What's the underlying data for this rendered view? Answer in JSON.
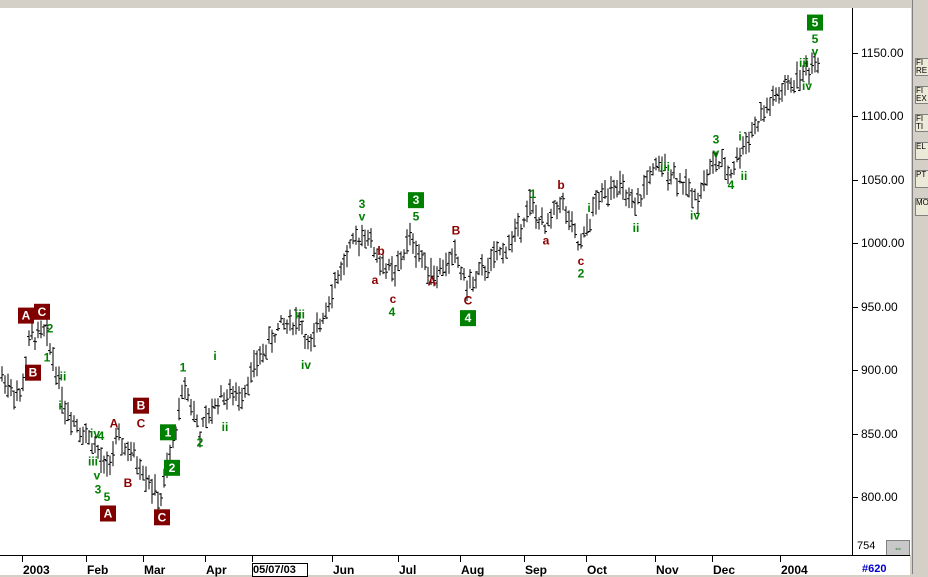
{
  "chart_data": {
    "type": "ohlc",
    "symbol_hint": "",
    "y_ticks": [
      800,
      850,
      900,
      950,
      1000,
      1050,
      1100,
      1150
    ],
    "ylim": [
      754,
      1180
    ],
    "y_min_label": "754",
    "x_labels": [
      "2003",
      "Feb",
      "Mar",
      "Apr",
      "05/07/03",
      "Jun",
      "Jul",
      "Aug",
      "Sep",
      "Oct",
      "Nov",
      "Dec",
      "2004"
    ],
    "price_path": [
      [
        0,
        897
      ],
      [
        20,
        878
      ],
      [
        30,
        925
      ],
      [
        45,
        930
      ],
      [
        55,
        905
      ],
      [
        65,
        870
      ],
      [
        80,
        855
      ],
      [
        95,
        840
      ],
      [
        105,
        820
      ],
      [
        118,
        845
      ],
      [
        130,
        835
      ],
      [
        145,
        820
      ],
      [
        160,
        795
      ],
      [
        172,
        840
      ],
      [
        185,
        890
      ],
      [
        200,
        850
      ],
      [
        220,
        880
      ],
      [
        240,
        880
      ],
      [
        260,
        910
      ],
      [
        280,
        935
      ],
      [
        300,
        940
      ],
      [
        310,
        915
      ],
      [
        330,
        960
      ],
      [
        350,
        995
      ],
      [
        365,
        1010
      ],
      [
        380,
        985
      ],
      [
        395,
        975
      ],
      [
        410,
        1005
      ],
      [
        420,
        990
      ],
      [
        435,
        975
      ],
      [
        455,
        990
      ],
      [
        468,
        965
      ],
      [
        485,
        980
      ],
      [
        510,
        1000
      ],
      [
        530,
        1030
      ],
      [
        545,
        1010
      ],
      [
        560,
        1035
      ],
      [
        580,
        995
      ],
      [
        595,
        1030
      ],
      [
        615,
        1050
      ],
      [
        635,
        1025
      ],
      [
        650,
        1055
      ],
      [
        665,
        1060
      ],
      [
        680,
        1050
      ],
      [
        695,
        1035
      ],
      [
        715,
        1065
      ],
      [
        730,
        1055
      ],
      [
        745,
        1080
      ],
      [
        770,
        1110
      ],
      [
        790,
        1125
      ],
      [
        805,
        1135
      ],
      [
        818,
        1145
      ]
    ],
    "wave_labels": [
      {
        "t": "A",
        "x": 26,
        "y": 943,
        "boxed": true,
        "color": "red"
      },
      {
        "t": "C",
        "x": 42,
        "y": 946,
        "boxed": true,
        "color": "red"
      },
      {
        "t": "2",
        "x": 50,
        "y": 933,
        "color": "green"
      },
      {
        "t": "1",
        "x": 47,
        "y": 910,
        "color": "green"
      },
      {
        "t": "B",
        "x": 33,
        "y": 898,
        "boxed": true,
        "color": "red"
      },
      {
        "t": "ii",
        "x": 63,
        "y": 895,
        "color": "green"
      },
      {
        "t": "i",
        "x": 60,
        "y": 872,
        "color": "green"
      },
      {
        "t": "iv",
        "x": 95,
        "y": 850,
        "color": "green"
      },
      {
        "t": "4",
        "x": 101,
        "y": 848,
        "color": "green"
      },
      {
        "t": "iii",
        "x": 93,
        "y": 828,
        "color": "green"
      },
      {
        "t": "v",
        "x": 97,
        "y": 817,
        "color": "green"
      },
      {
        "t": "3",
        "x": 98,
        "y": 806,
        "color": "green"
      },
      {
        "t": "5",
        "x": 107,
        "y": 800,
        "color": "green"
      },
      {
        "t": "A",
        "x": 108,
        "y": 787,
        "boxed": true,
        "color": "red"
      },
      {
        "t": "A",
        "x": 114,
        "y": 858,
        "color": "red"
      },
      {
        "t": "C",
        "x": 141,
        "y": 858,
        "color": "red"
      },
      {
        "t": "B",
        "x": 141,
        "y": 872,
        "boxed": true,
        "color": "red"
      },
      {
        "t": "B",
        "x": 128,
        "y": 811,
        "color": "red"
      },
      {
        "t": "C",
        "x": 162,
        "y": 784,
        "boxed": true,
        "color": "red"
      },
      {
        "t": "1",
        "x": 168,
        "y": 851,
        "boxed": true,
        "color": "green"
      },
      {
        "t": "2",
        "x": 172,
        "y": 823,
        "boxed": true,
        "color": "green"
      },
      {
        "t": "1",
        "x": 183,
        "y": 902,
        "color": "green"
      },
      {
        "t": "2",
        "x": 200,
        "y": 843,
        "color": "green"
      },
      {
        "t": "i",
        "x": 215,
        "y": 911,
        "color": "green"
      },
      {
        "t": "ii",
        "x": 225,
        "y": 855,
        "color": "green"
      },
      {
        "t": "iii",
        "x": 300,
        "y": 944,
        "color": "green"
      },
      {
        "t": "iv",
        "x": 306,
        "y": 904,
        "color": "green"
      },
      {
        "t": "3",
        "x": 362,
        "y": 1031,
        "color": "green"
      },
      {
        "t": "v",
        "x": 362,
        "y": 1021,
        "color": "green"
      },
      {
        "t": "b",
        "x": 381,
        "y": 994,
        "color": "red"
      },
      {
        "t": "a",
        "x": 375,
        "y": 971,
        "color": "red"
      },
      {
        "t": "c",
        "x": 393,
        "y": 956,
        "color": "red"
      },
      {
        "t": "4",
        "x": 392,
        "y": 946,
        "color": "green"
      },
      {
        "t": "3",
        "x": 416,
        "y": 1034,
        "boxed": true,
        "color": "green"
      },
      {
        "t": "5",
        "x": 416,
        "y": 1021,
        "color": "green"
      },
      {
        "t": "B",
        "x": 456,
        "y": 1010,
        "color": "red"
      },
      {
        "t": "A",
        "x": 432,
        "y": 970,
        "color": "red"
      },
      {
        "t": "C",
        "x": 468,
        "y": 955,
        "color": "red"
      },
      {
        "t": "4",
        "x": 468,
        "y": 941,
        "boxed": true,
        "color": "green"
      },
      {
        "t": "1",
        "x": 533,
        "y": 1039,
        "color": "green"
      },
      {
        "t": "b",
        "x": 561,
        "y": 1046,
        "color": "red"
      },
      {
        "t": "a",
        "x": 546,
        "y": 1002,
        "color": "red"
      },
      {
        "t": "c",
        "x": 581,
        "y": 986,
        "color": "red"
      },
      {
        "t": "2",
        "x": 581,
        "y": 976,
        "color": "green"
      },
      {
        "t": "i",
        "x": 589,
        "y": 1028,
        "color": "green"
      },
      {
        "t": "ii",
        "x": 636,
        "y": 1012,
        "color": "green"
      },
      {
        "t": "iii",
        "x": 665,
        "y": 1060,
        "color": "green"
      },
      {
        "t": "iv",
        "x": 695,
        "y": 1022,
        "color": "green"
      },
      {
        "t": "3",
        "x": 716,
        "y": 1082,
        "color": "green"
      },
      {
        "t": "v",
        "x": 716,
        "y": 1071,
        "color": "green"
      },
      {
        "t": "i",
        "x": 740,
        "y": 1084,
        "color": "green"
      },
      {
        "t": "ii",
        "x": 744,
        "y": 1053,
        "color": "green"
      },
      {
        "t": "4",
        "x": 731,
        "y": 1046,
        "color": "green"
      },
      {
        "t": "5",
        "x": 815,
        "y": 1174,
        "boxed": true,
        "color": "green"
      },
      {
        "t": "5",
        "x": 815,
        "y": 1161,
        "color": "green"
      },
      {
        "t": "v",
        "x": 815,
        "y": 1151,
        "color": "green"
      },
      {
        "t": "iii",
        "x": 804,
        "y": 1142,
        "color": "green"
      },
      {
        "t": "iv",
        "x": 807,
        "y": 1124,
        "color": "green"
      }
    ],
    "colors": {
      "up_wave": "#008000",
      "down_wave": "#8b0000",
      "box_green": "#008000",
      "box_red": "#800000"
    }
  },
  "ui": {
    "date_box": "05/07/03",
    "counter": "#620",
    "toolbar": [
      "FI RE",
      "FI EX",
      "FI TI",
      "EL",
      "PT",
      "MO"
    ]
  }
}
